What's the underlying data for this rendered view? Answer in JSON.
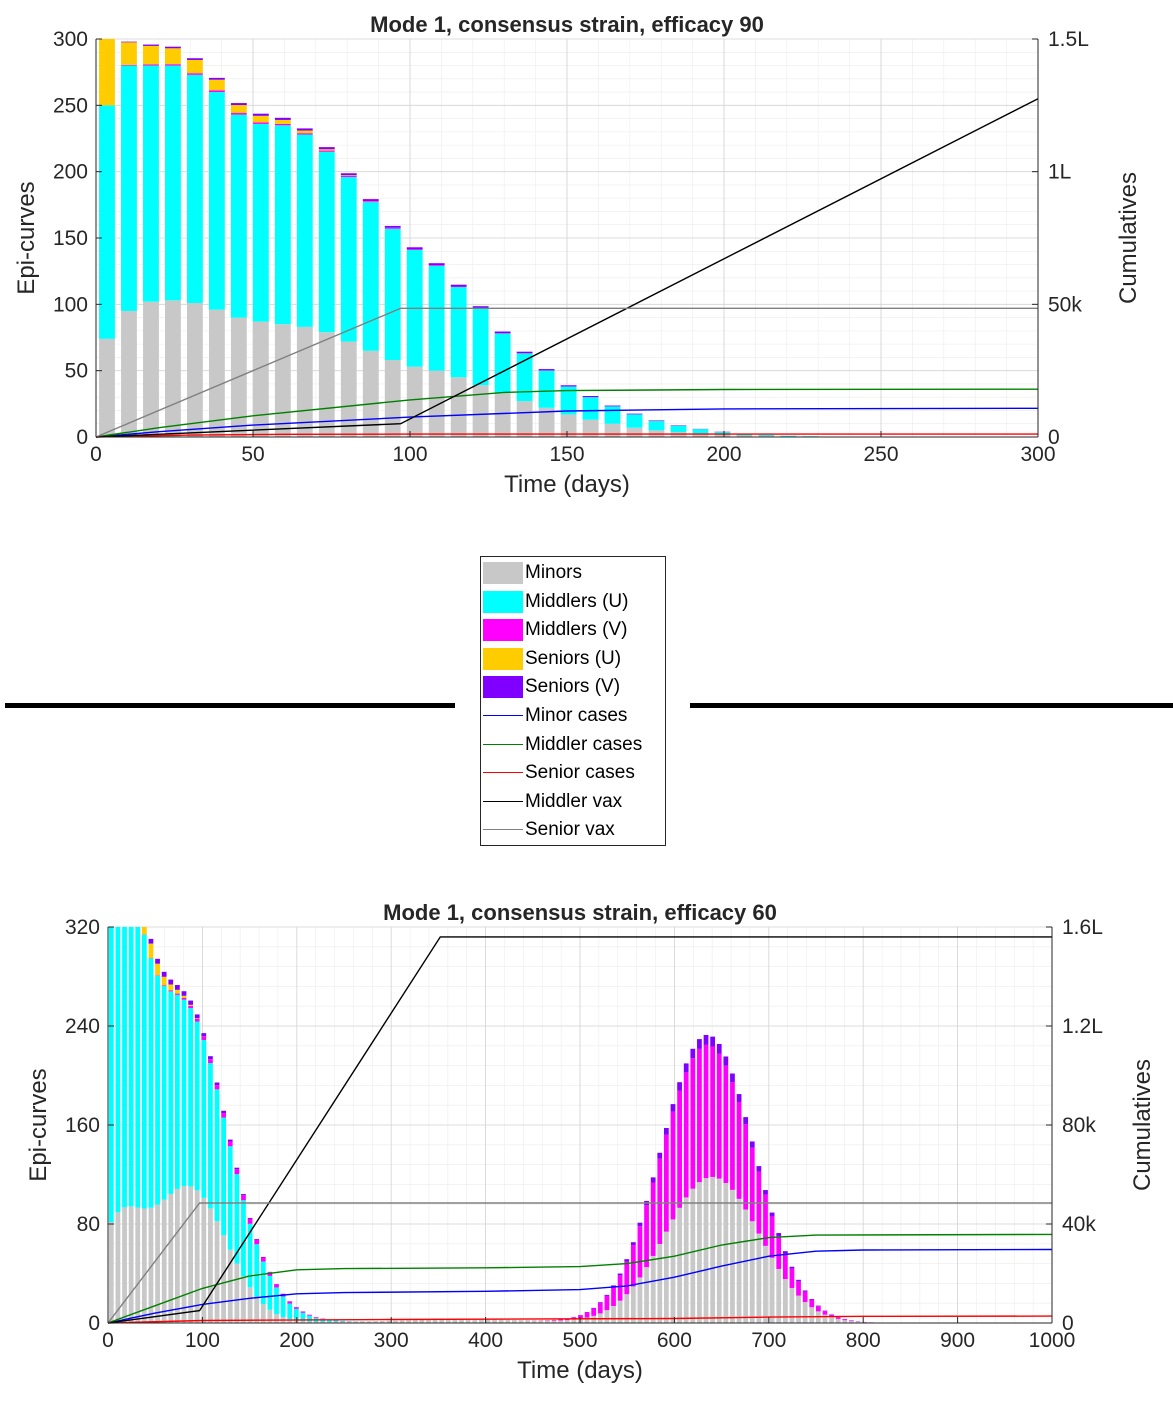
{
  "colors": {
    "minors": "#c8c8c8",
    "middlers_u": "#00ffff",
    "middlers_v": "#ff00ff",
    "seniors_u": "#ffcc00",
    "seniors_v": "#8000ff",
    "minor_cases": "#0000ff",
    "middler_cases": "#008000",
    "senior_cases": "#ff0000",
    "middler_vax": "#000000",
    "senior_vax": "#808080"
  },
  "legend": [
    {
      "key": "minors",
      "label": "Minors",
      "kind": "bar"
    },
    {
      "key": "middlers_u",
      "label": "Middlers (U)",
      "kind": "bar"
    },
    {
      "key": "middlers_v",
      "label": "Middlers (V)",
      "kind": "bar"
    },
    {
      "key": "seniors_u",
      "label": "Seniors (U)",
      "kind": "bar"
    },
    {
      "key": "seniors_v",
      "label": "Seniors (V)",
      "kind": "bar"
    },
    {
      "key": "minor_cases",
      "label": "Minor cases",
      "kind": "line"
    },
    {
      "key": "middler_cases",
      "label": "Middler cases",
      "kind": "line"
    },
    {
      "key": "senior_cases",
      "label": "Senior cases",
      "kind": "line"
    },
    {
      "key": "middler_vax",
      "label": "Middler vax",
      "kind": "line"
    },
    {
      "key": "senior_vax",
      "label": "Senior vax",
      "kind": "line"
    }
  ],
  "chart_data": [
    {
      "type": "bar",
      "stacked": true,
      "title": "Mode 1, consensus strain, efficacy 90",
      "xlabel": "Time (days)",
      "ylabel": "Epi-curves",
      "y2label": "Cumulatives",
      "xlim": [
        0,
        300
      ],
      "ylim": [
        0,
        300
      ],
      "y2lim": [
        0,
        150000
      ],
      "xticks": [
        0,
        50,
        100,
        150,
        200,
        250,
        300
      ],
      "yticks": [
        0,
        50,
        100,
        150,
        200,
        250,
        300
      ],
      "y2ticks": [
        0,
        50000,
        100000,
        150000
      ],
      "y2ticklabels": [
        "0",
        "50k",
        "1L",
        "1.5L"
      ],
      "bin_width": 7,
      "x": [
        3.5,
        10.5,
        17.5,
        24.5,
        31.5,
        38.5,
        45.5,
        52.5,
        59.5,
        66.5,
        73.5,
        80.5,
        87.5,
        94.5,
        101.5,
        108.5,
        115.5,
        122.5,
        129.5,
        136.5,
        143.5,
        150.5,
        157.5,
        164.5,
        171.5,
        178.5,
        185.5,
        192.5,
        199.5,
        206.5,
        213.5,
        220.5,
        227.5,
        234.5,
        241.5,
        248.5,
        255.5,
        262.5
      ],
      "series": [
        {
          "key": "minors",
          "name": "Minors",
          "values": [
            74,
            95,
            102,
            103,
            101,
            96,
            90,
            87,
            85,
            83,
            79,
            72,
            65,
            58,
            53,
            50,
            45,
            39,
            33,
            27,
            22,
            17,
            13,
            10,
            7,
            5,
            3.5,
            2.5,
            1.6,
            1.0,
            0.6,
            0.4,
            0.25,
            0.15,
            0.1,
            0.06,
            0.04,
            0.02
          ]
        },
        {
          "key": "middlers_u",
          "name": "Middlers (U)",
          "values": [
            176,
            185,
            178,
            177,
            172,
            164,
            153,
            149,
            150,
            145,
            136,
            124,
            112,
            99,
            88,
            79,
            68,
            58,
            45,
            36,
            28,
            21,
            17,
            13,
            10,
            7,
            5,
            3.4,
            2.3,
            1.4,
            0.9,
            0.55,
            0.35,
            0.22,
            0.13,
            0.08,
            0.05,
            0.03
          ]
        },
        {
          "key": "middlers_v",
          "name": "Middlers (V)",
          "values": [
            0,
            0.5,
            0.8,
            1,
            1.2,
            1.3,
            1.2,
            1.1,
            1,
            1,
            0.9,
            0.8,
            0.7,
            0.6,
            0.5,
            0.5,
            0.4,
            0.3,
            0.3,
            0.2,
            0.2,
            0.1,
            0.1,
            0.1,
            0.1,
            0.05,
            0.05,
            0.03,
            0.02,
            0.01,
            0.01,
            0,
            0,
            0,
            0,
            0,
            0,
            0
          ]
        },
        {
          "key": "seniors_u",
          "name": "Seniors (U)",
          "values": [
            50,
            17,
            14,
            12,
            10,
            8,
            6,
            5,
            3,
            2,
            1,
            0.5,
            0.2,
            0.1,
            0,
            0,
            0,
            0,
            0,
            0,
            0,
            0,
            0,
            0,
            0,
            0,
            0,
            0,
            0,
            0,
            0,
            0,
            0,
            0,
            0,
            0,
            0,
            0
          ]
        },
        {
          "key": "seniors_v",
          "name": "Seniors (V)",
          "values": [
            0,
            0.5,
            1,
            1.2,
            1.3,
            1.4,
            1.5,
            1.6,
            1.6,
            1.6,
            1.6,
            1.5,
            1.4,
            1.4,
            1.5,
            1.5,
            1.4,
            1.3,
            1.2,
            1.1,
            1.0,
            0.9,
            0.8,
            0.6,
            0.5,
            0.4,
            0.3,
            0.2,
            0.15,
            0.1,
            0.06,
            0.04,
            0.02,
            0.01,
            0,
            0,
            0,
            0
          ]
        }
      ],
      "lines": [
        {
          "key": "minor_cases",
          "name": "Minor cases",
          "points": [
            [
              0,
              0
            ],
            [
              20,
              2000
            ],
            [
              50,
              4500
            ],
            [
              100,
              7500
            ],
            [
              150,
              9800
            ],
            [
              200,
              10600
            ],
            [
              300,
              10800
            ]
          ]
        },
        {
          "key": "middler_cases",
          "name": "Middler cases",
          "points": [
            [
              0,
              0
            ],
            [
              20,
              3500
            ],
            [
              50,
              8000
            ],
            [
              100,
              14000
            ],
            [
              130,
              16800
            ],
            [
              150,
              17500
            ],
            [
              200,
              17900
            ],
            [
              300,
              18000
            ]
          ]
        },
        {
          "key": "senior_cases",
          "name": "Senior cases",
          "points": [
            [
              0,
              0
            ],
            [
              30,
              700
            ],
            [
              60,
              1000
            ],
            [
              100,
              1100
            ],
            [
              300,
              1100
            ]
          ]
        },
        {
          "key": "middler_vax",
          "name": "Middler vax",
          "points": [
            [
              0,
              0
            ],
            [
              97,
              5000
            ],
            [
              300,
              127500
            ]
          ]
        },
        {
          "key": "senior_vax",
          "name": "Senior vax",
          "points": [
            [
              0,
              0
            ],
            [
              97,
              48500
            ],
            [
              300,
              48500
            ]
          ]
        }
      ]
    },
    {
      "type": "bar",
      "stacked": true,
      "title": "Mode 1, consensus strain, efficacy 60",
      "xlabel": "Time (days)",
      "ylabel": "Epi-curves",
      "y2label": "Cumulatives",
      "xlim": [
        0,
        1000
      ],
      "ylim": [
        0,
        320
      ],
      "y2lim": [
        0,
        160000
      ],
      "xticks": [
        0,
        100,
        200,
        300,
        400,
        500,
        600,
        700,
        800,
        900,
        1000
      ],
      "yticks": [
        0,
        80,
        160,
        240,
        320
      ],
      "y2ticks": [
        0,
        40000,
        80000,
        120000,
        160000
      ],
      "y2ticklabels": [
        "0",
        "40k",
        "80k",
        "1.2L",
        "1.6L"
      ],
      "bin_width": 7,
      "gauss_series": [
        {
          "key": "minors",
          "name": "Minors",
          "bumps": [
            [
              10,
              70,
              25,
              12
            ],
            [
              85,
              110,
              40,
              28
            ],
            [
              380,
              3,
              80,
              0
            ],
            [
              640,
              118,
              50,
              0
            ]
          ],
          "tail": [
            [
              900,
              0
            ]
          ]
        },
        {
          "key": "middlers_u",
          "name": "Middlers (U)",
          "bumps": [
            [
              10,
              180,
              25,
              0
            ],
            [
              70,
              150,
              55,
              0
            ]
          ],
          "tail": []
        },
        {
          "key": "middlers_v",
          "name": "Middlers (V)",
          "bumps": [
            [
              140,
              4,
              40,
              0
            ],
            [
              630,
              108,
              48,
              0
            ]
          ],
          "tail": []
        },
        {
          "key": "seniors_u",
          "name": "Seniors (U)",
          "bumps": [
            [
              5,
              50,
              12,
              0
            ],
            [
              30,
              14,
              25,
              0
            ]
          ],
          "tail": []
        },
        {
          "key": "seniors_v",
          "name": "Seniors (V)",
          "bumps": [
            [
              60,
              4,
              50,
              0
            ],
            [
              635,
              8,
              50,
              0
            ]
          ],
          "tail": []
        }
      ],
      "lines": [
        {
          "key": "minor_cases",
          "name": "Minor cases",
          "points": [
            [
              0,
              0
            ],
            [
              50,
              4000
            ],
            [
              100,
              7500
            ],
            [
              150,
              10000
            ],
            [
              200,
              11800
            ],
            [
              250,
              12300
            ],
            [
              400,
              12800
            ],
            [
              500,
              13500
            ],
            [
              550,
              15000
            ],
            [
              600,
              18500
            ],
            [
              650,
              23000
            ],
            [
              700,
              27000
            ],
            [
              750,
              29000
            ],
            [
              800,
              29500
            ],
            [
              1000,
              29700
            ]
          ]
        },
        {
          "key": "middler_cases",
          "name": "Middler cases",
          "points": [
            [
              0,
              0
            ],
            [
              50,
              7000
            ],
            [
              100,
              14000
            ],
            [
              150,
              19000
            ],
            [
              200,
              21500
            ],
            [
              250,
              22000
            ],
            [
              400,
              22300
            ],
            [
              500,
              22800
            ],
            [
              550,
              24000
            ],
            [
              600,
              27000
            ],
            [
              650,
              31500
            ],
            [
              700,
              34500
            ],
            [
              750,
              35500
            ],
            [
              1000,
              35800
            ]
          ]
        },
        {
          "key": "senior_cases",
          "name": "Senior cases",
          "points": [
            [
              0,
              0
            ],
            [
              100,
              1000
            ],
            [
              300,
              1400
            ],
            [
              600,
              1800
            ],
            [
              700,
              2400
            ],
            [
              800,
              2700
            ],
            [
              1000,
              2800
            ]
          ]
        },
        {
          "key": "middler_vax",
          "name": "Middler vax",
          "points": [
            [
              0,
              0
            ],
            [
              97,
              5000
            ],
            [
              352,
              156000
            ],
            [
              1000,
              156000
            ]
          ]
        },
        {
          "key": "senior_vax",
          "name": "Senior vax",
          "points": [
            [
              0,
              0
            ],
            [
              97,
              48500
            ],
            [
              1000,
              48500
            ]
          ]
        }
      ]
    }
  ]
}
